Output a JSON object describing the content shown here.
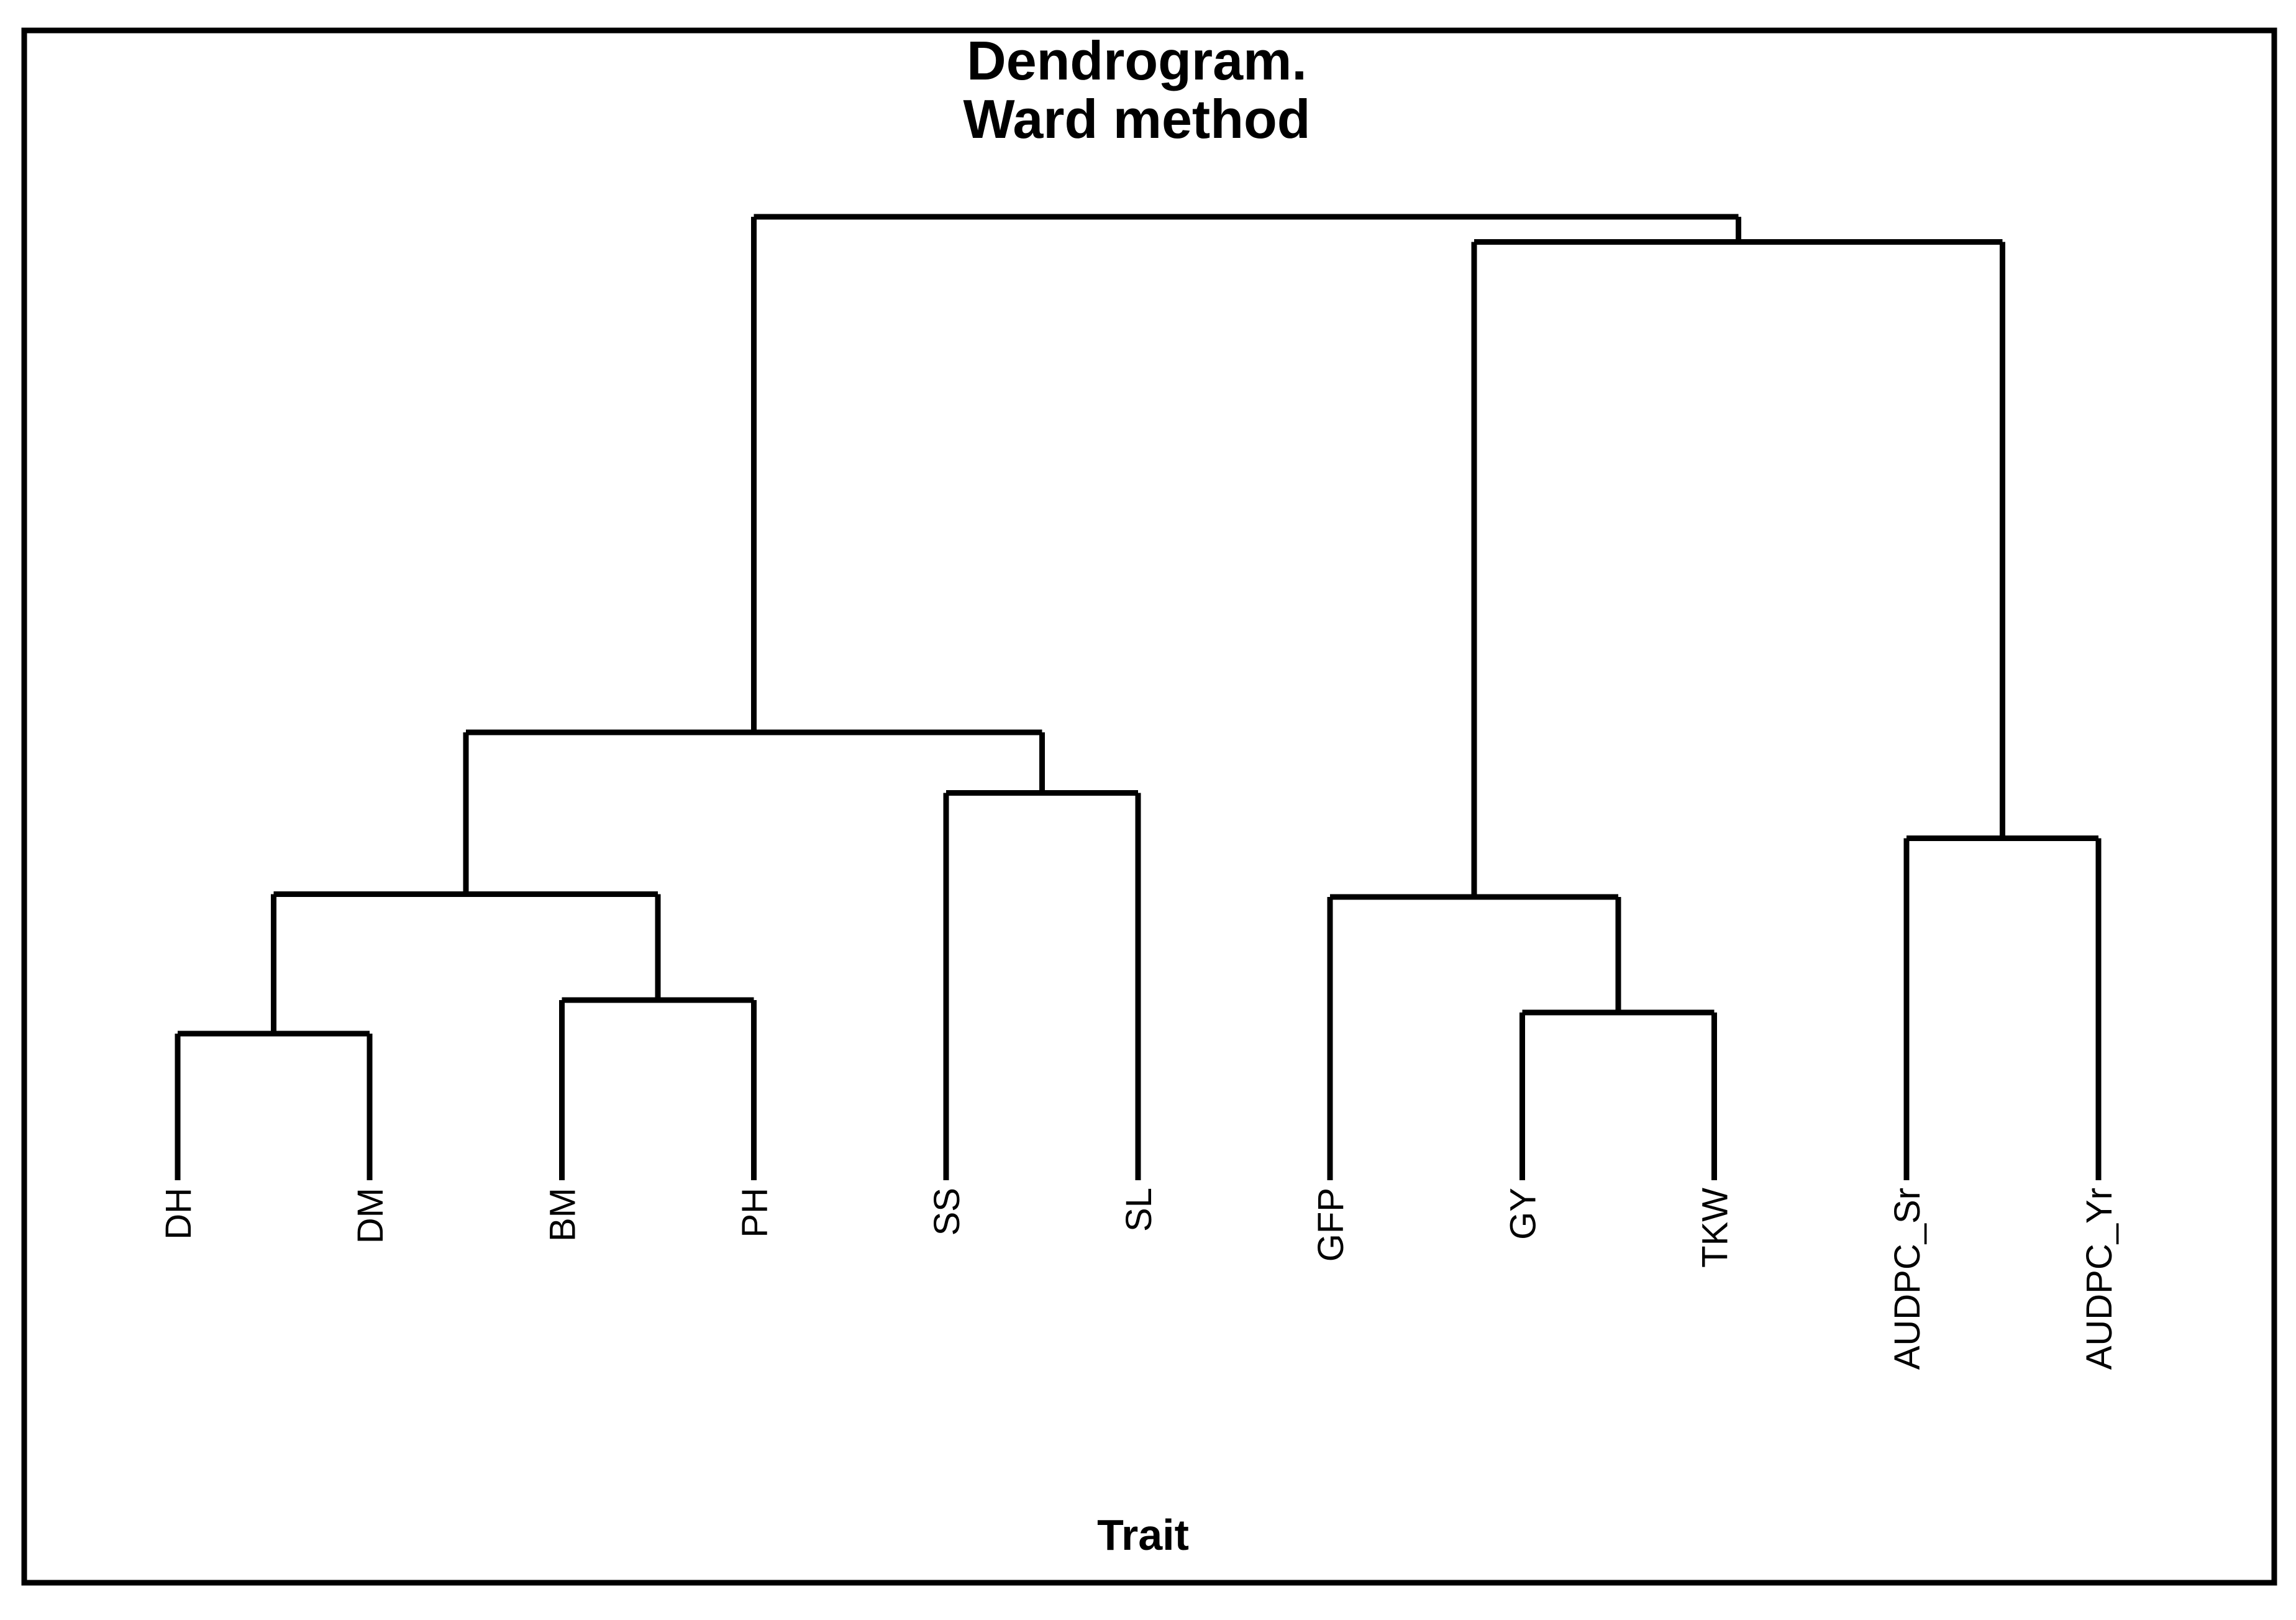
{
  "figure": {
    "title_line1": "Dendrogram.",
    "title_line2": "Ward method",
    "xlabel": "Trait"
  },
  "colors": {
    "background": "#ffffff",
    "line": "#000000",
    "frame": "#000000",
    "text": "#000000"
  },
  "chart_data": {
    "type": "dendrogram",
    "title": "Dendrogram. Ward method",
    "linkage_method": "Ward",
    "orientation": "vertical",
    "xlabel": "Trait",
    "ylabel": "",
    "height_axis_shown": false,
    "leaf_order": [
      "DH",
      "DM",
      "BM",
      "PH",
      "SS",
      "SL",
      "GFP",
      "GY",
      "TKW",
      "AUDPC_Sr",
      "AUDPC_Yr"
    ],
    "merges": [
      {
        "id": "M1",
        "children": [
          "DH",
          "DM"
        ],
        "rel_height": 0.152
      },
      {
        "id": "M2",
        "children": [
          "BM",
          "PH"
        ],
        "rel_height": 0.187
      },
      {
        "id": "M3",
        "children": [
          "M1",
          "M2"
        ],
        "rel_height": 0.297
      },
      {
        "id": "M4",
        "children": [
          "SS",
          "SL"
        ],
        "rel_height": 0.402
      },
      {
        "id": "M5",
        "children": [
          "M3",
          "M4"
        ],
        "rel_height": 0.465
      },
      {
        "id": "M6",
        "children": [
          "GY",
          "TKW"
        ],
        "rel_height": 0.174
      },
      {
        "id": "M7",
        "children": [
          "GFP",
          "M6"
        ],
        "rel_height": 0.294
      },
      {
        "id": "M8",
        "children": [
          "AUDPC_Sr",
          "AUDPC_Yr"
        ],
        "rel_height": 0.355
      },
      {
        "id": "M9",
        "children": [
          "M7",
          "M8"
        ],
        "rel_height": 0.974
      },
      {
        "id": "M10",
        "children": [
          "M5",
          "M9"
        ],
        "rel_height": 1.0
      }
    ]
  }
}
